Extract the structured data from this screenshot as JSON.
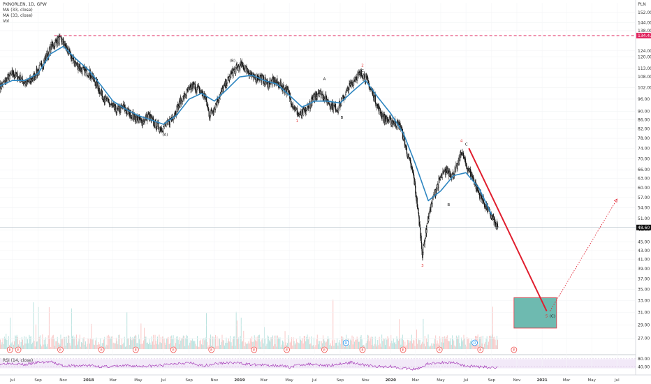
{
  "legend": {
    "symbol": "PKNORLEN, 1D, GPW",
    "ma1": "MA (33, close)",
    "ma2": "MA (33, close)",
    "vol": "Vol",
    "currency": "PLN"
  },
  "colors": {
    "up": "#26a69a",
    "down": "#ef5350",
    "candle": "#111111",
    "ma": "#2e86c1",
    "resistance": "#e0245e",
    "target_line": "#e01e2e",
    "target_box": "#5fb3a8",
    "rsi": "#9c27b0",
    "price_label": "#111111"
  },
  "chart_data": {
    "type": "line",
    "title": "PKNORLEN, 1D, GPW",
    "y_axis": {
      "scale": "log",
      "ticks": [
        "152.00",
        "144.00",
        "138.00",
        "124.00",
        "120.00",
        "113.00",
        "108.00",
        "102.00",
        "96.00",
        "90.00",
        "86.00",
        "82.00",
        "78.00",
        "74.00",
        "70.00",
        "66.00",
        "63.00",
        "60.00",
        "57.00",
        "54.00",
        "51.00",
        "48.00",
        "45.00",
        "43.00",
        "41.00",
        "39.00",
        "37.00",
        "35.00",
        "33.00",
        "31.00",
        "29.00",
        "27.00"
      ],
      "range": [
        25.5,
        160
      ]
    },
    "x_axis": {
      "ticks": [
        "Jul",
        "Sep",
        "Nov",
        "2018",
        "Mar",
        "May",
        "Jul",
        "Sep",
        "Nov",
        "2019",
        "Mar",
        "May",
        "Jul",
        "Sep",
        "Nov",
        "2020",
        "Mar",
        "May",
        "Jul",
        "Sep",
        "Nov",
        "2021",
        "Mar",
        "May",
        "Jul"
      ],
      "range": [
        "2017-06-01",
        "2021-08-15"
      ]
    },
    "series": [
      {
        "kind": "price",
        "points": [
          [
            "2017-06-01",
            102
          ],
          [
            "2017-06-15",
            106
          ],
          [
            "2017-07-01",
            110
          ],
          [
            "2017-07-20",
            107
          ],
          [
            "2017-08-05",
            104
          ],
          [
            "2017-08-25",
            109
          ],
          [
            "2017-09-10",
            115
          ],
          [
            "2017-09-25",
            122
          ],
          [
            "2017-10-05",
            128
          ],
          [
            "2017-10-20",
            132
          ],
          [
            "2017-11-01",
            130
          ],
          [
            "2017-11-15",
            122
          ],
          [
            "2017-12-01",
            116
          ],
          [
            "2017-12-15",
            112
          ],
          [
            "2018-01-05",
            110
          ],
          [
            "2018-01-20",
            104
          ],
          [
            "2018-02-05",
            97
          ],
          [
            "2018-02-20",
            94
          ],
          [
            "2018-03-10",
            90
          ],
          [
            "2018-03-25",
            92
          ],
          [
            "2018-04-10",
            89
          ],
          [
            "2018-04-25",
            87
          ],
          [
            "2018-05-10",
            85
          ],
          [
            "2018-05-25",
            88
          ],
          [
            "2018-06-10",
            84
          ],
          [
            "2018-06-25",
            82
          ],
          [
            "2018-07-10",
            84
          ],
          [
            "2018-07-25",
            88
          ],
          [
            "2018-08-10",
            94
          ],
          [
            "2018-08-25",
            99
          ],
          [
            "2018-09-10",
            103
          ],
          [
            "2018-09-25",
            101
          ],
          [
            "2018-10-10",
            97
          ],
          [
            "2018-10-20",
            88
          ],
          [
            "2018-11-01",
            92
          ],
          [
            "2018-11-15",
            98
          ],
          [
            "2018-12-01",
            105
          ],
          [
            "2018-12-15",
            111
          ],
          [
            "2019-01-05",
            115
          ],
          [
            "2019-01-20",
            112
          ],
          [
            "2019-02-05",
            107
          ],
          [
            "2019-02-20",
            108
          ],
          [
            "2019-03-10",
            104
          ],
          [
            "2019-03-25",
            106
          ],
          [
            "2019-04-10",
            103
          ],
          [
            "2019-04-25",
            101
          ],
          [
            "2019-05-10",
            93
          ],
          [
            "2019-05-25",
            88
          ],
          [
            "2019-06-10",
            90
          ],
          [
            "2019-06-25",
            95
          ],
          [
            "2019-07-10",
            100
          ],
          [
            "2019-07-25",
            97
          ],
          [
            "2019-08-10",
            93
          ],
          [
            "2019-08-25",
            91
          ],
          [
            "2019-09-10",
            97
          ],
          [
            "2019-09-25",
            103
          ],
          [
            "2019-10-10",
            108
          ],
          [
            "2019-10-25",
            110
          ],
          [
            "2019-11-05",
            106
          ],
          [
            "2019-11-20",
            98
          ],
          [
            "2019-12-05",
            90
          ],
          [
            "2019-12-20",
            86
          ],
          [
            "2020-01-10",
            85
          ],
          [
            "2020-01-25",
            83
          ],
          [
            "2020-02-10",
            72
          ],
          [
            "2020-02-25",
            64
          ],
          [
            "2020-03-10",
            50
          ],
          [
            "2020-03-18",
            42
          ],
          [
            "2020-03-30",
            50
          ],
          [
            "2020-04-15",
            58
          ],
          [
            "2020-04-30",
            63
          ],
          [
            "2020-05-15",
            66
          ],
          [
            "2020-05-30",
            64
          ],
          [
            "2020-06-12",
            68
          ],
          [
            "2020-06-20",
            73
          ],
          [
            "2020-06-30",
            68
          ],
          [
            "2020-07-15",
            64
          ],
          [
            "2020-07-30",
            59
          ],
          [
            "2020-08-15",
            55
          ],
          [
            "2020-08-30",
            52
          ],
          [
            "2020-09-12",
            49
          ],
          [
            "2020-09-16",
            48.6
          ]
        ]
      },
      {
        "kind": "ma",
        "name": "MA (33, close)",
        "points": [
          [
            "2017-06-01",
            103
          ],
          [
            "2017-07-01",
            106
          ],
          [
            "2017-08-01",
            106
          ],
          [
            "2017-09-01",
            110
          ],
          [
            "2017-10-01",
            122
          ],
          [
            "2017-11-01",
            127
          ],
          [
            "2017-12-01",
            119
          ],
          [
            "2018-01-01",
            112
          ],
          [
            "2018-02-01",
            103
          ],
          [
            "2018-03-01",
            95
          ],
          [
            "2018-04-01",
            91
          ],
          [
            "2018-05-01",
            88
          ],
          [
            "2018-06-01",
            86
          ],
          [
            "2018-07-01",
            84
          ],
          [
            "2018-08-01",
            88
          ],
          [
            "2018-09-01",
            96
          ],
          [
            "2018-10-01",
            99
          ],
          [
            "2018-11-01",
            95
          ],
          [
            "2018-12-01",
            101
          ],
          [
            "2019-01-01",
            108
          ],
          [
            "2019-02-01",
            109
          ],
          [
            "2019-03-01",
            106
          ],
          [
            "2019-04-01",
            104
          ],
          [
            "2019-05-01",
            98
          ],
          [
            "2019-06-01",
            92
          ],
          [
            "2019-07-01",
            95
          ],
          [
            "2019-08-01",
            95
          ],
          [
            "2019-09-01",
            94
          ],
          [
            "2019-10-01",
            100
          ],
          [
            "2019-11-01",
            106
          ],
          [
            "2019-12-01",
            97
          ],
          [
            "2020-01-01",
            89
          ],
          [
            "2020-02-01",
            80
          ],
          [
            "2020-03-01",
            68
          ],
          [
            "2020-04-01",
            56
          ],
          [
            "2020-05-01",
            59
          ],
          [
            "2020-06-01",
            64
          ],
          [
            "2020-07-01",
            65
          ],
          [
            "2020-08-01",
            60
          ],
          [
            "2020-09-01",
            52
          ]
        ]
      }
    ],
    "resistance": {
      "price": 134.47,
      "label": "134.47",
      "from": "2017-10-10"
    },
    "last_price": {
      "price": 48.6,
      "label": "48.60"
    },
    "projection_line": {
      "from": [
        "2020-07-08",
        74
      ],
      "to": [
        "2021-01-12",
        31.2
      ]
    },
    "projection_dotted": {
      "from": [
        "2021-01-20",
        31.2
      ],
      "to": [
        "2021-07-01",
        56.5
      ]
    },
    "target_box": {
      "from": "2020-10-25",
      "to": "2021-02-05",
      "top": 33.5,
      "bottom": 28.5
    },
    "wave_labels": [
      {
        "text": "(A)",
        "date": "2018-07-05",
        "price": 79,
        "color": "black"
      },
      {
        "text": "(B)",
        "date": "2018-12-15",
        "price": 117,
        "color": "black"
      },
      {
        "text": "1",
        "date": "2019-05-20",
        "price": 85,
        "color": "red"
      },
      {
        "text": "A",
        "date": "2019-07-25",
        "price": 106,
        "color": "black"
      },
      {
        "text": "B",
        "date": "2019-09-05",
        "price": 86.5,
        "color": "black"
      },
      {
        "text": "2",
        "date": "2019-10-25",
        "price": 114,
        "color": "red"
      },
      {
        "text": "C",
        "date": "2019-10-25",
        "price": 111,
        "color": "black"
      },
      {
        "text": "3",
        "date": "2020-03-18",
        "price": 39.5,
        "color": "red"
      },
      {
        "text": "B",
        "date": "2020-05-20",
        "price": 54.5,
        "color": "black"
      },
      {
        "text": "4",
        "date": "2020-06-20",
        "price": 76.5,
        "color": "red"
      },
      {
        "text": "C",
        "date": "2020-07-02",
        "price": 75,
        "color": "black"
      },
      {
        "text": "5",
        "date": "2021-01-12",
        "price": 30.2,
        "color": "red"
      },
      {
        "text": "(C)",
        "date": "2021-01-26",
        "price": 30.2,
        "color": "black"
      }
    ],
    "event_badges": [
      {
        "date": "2017-06-25",
        "text": "E",
        "kind": "earnings"
      },
      {
        "date": "2017-07-15",
        "text": "E",
        "kind": "earnings"
      },
      {
        "date": "2017-10-25",
        "text": "E",
        "kind": "earnings"
      },
      {
        "date": "2018-02-01",
        "text": "E",
        "kind": "earnings"
      },
      {
        "date": "2018-04-25",
        "text": "E",
        "kind": "earnings"
      },
      {
        "date": "2018-07-25",
        "text": "E",
        "kind": "earnings"
      },
      {
        "date": "2018-10-25",
        "text": "E",
        "kind": "earnings"
      },
      {
        "date": "2019-02-05",
        "text": "E",
        "kind": "earnings"
      },
      {
        "date": "2019-04-25",
        "text": "E",
        "kind": "earnings"
      },
      {
        "date": "2019-07-25",
        "text": "E",
        "kind": "earnings"
      },
      {
        "date": "2019-10-25",
        "text": "E",
        "kind": "earnings"
      },
      {
        "date": "2019-09-15",
        "text": "D",
        "kind": "dividend"
      },
      {
        "date": "2020-01-31",
        "text": "E",
        "kind": "earnings"
      },
      {
        "date": "2020-04-28",
        "text": "E",
        "kind": "earnings"
      },
      {
        "date": "2020-07-22",
        "text": "D",
        "kind": "dividend"
      },
      {
        "date": "2020-08-05",
        "text": "E",
        "kind": "earnings"
      },
      {
        "date": "2020-10-25",
        "text": "E",
        "kind": "earnings"
      }
    ],
    "rsi": {
      "name": "RSI (14, close)",
      "ticks": [
        "80.00",
        "40.00"
      ],
      "range": [
        20,
        90
      ],
      "points": [
        [
          "2017-06-01",
          55
        ],
        [
          "2017-07-01",
          58
        ],
        [
          "2017-08-01",
          50
        ],
        [
          "2017-09-01",
          62
        ],
        [
          "2017-10-01",
          64
        ],
        [
          "2017-11-01",
          45
        ],
        [
          "2017-12-01",
          44
        ],
        [
          "2018-01-01",
          47
        ],
        [
          "2018-02-01",
          40
        ],
        [
          "2018-03-01",
          42
        ],
        [
          "2018-04-01",
          45
        ],
        [
          "2018-05-01",
          43
        ],
        [
          "2018-06-01",
          44
        ],
        [
          "2018-07-01",
          48
        ],
        [
          "2018-08-01",
          58
        ],
        [
          "2018-09-01",
          60
        ],
        [
          "2018-10-01",
          44
        ],
        [
          "2018-11-01",
          55
        ],
        [
          "2018-12-01",
          60
        ],
        [
          "2019-01-01",
          58
        ],
        [
          "2019-02-01",
          50
        ],
        [
          "2019-03-01",
          48
        ],
        [
          "2019-04-01",
          47
        ],
        [
          "2019-05-01",
          38
        ],
        [
          "2019-06-01",
          52
        ],
        [
          "2019-07-01",
          54
        ],
        [
          "2019-08-01",
          45
        ],
        [
          "2019-09-01",
          55
        ],
        [
          "2019-10-01",
          62
        ],
        [
          "2019-11-01",
          48
        ],
        [
          "2019-12-01",
          40
        ],
        [
          "2020-01-01",
          42
        ],
        [
          "2020-02-01",
          32
        ],
        [
          "2020-03-01",
          26
        ],
        [
          "2020-04-01",
          55
        ],
        [
          "2020-05-01",
          60
        ],
        [
          "2020-06-01",
          62
        ],
        [
          "2020-07-01",
          44
        ],
        [
          "2020-08-01",
          40
        ],
        [
          "2020-09-01",
          36
        ],
        [
          "2020-09-16",
          38
        ]
      ]
    }
  }
}
